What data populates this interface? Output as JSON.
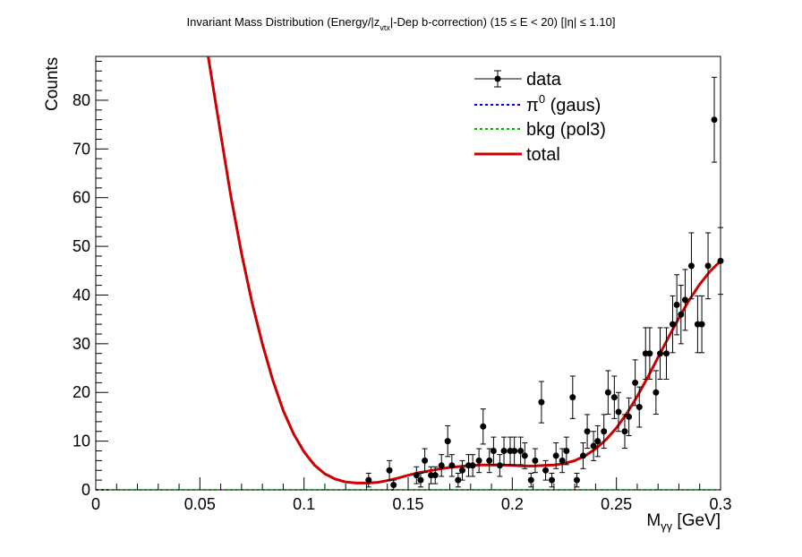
{
  "chart_data": {
    "type": "scatter",
    "title": {
      "part1": "Invariant Mass Distribution (Energy/|z",
      "sub": "vtx",
      "part2": "|-Dep b-correction)   (15 ≤ E < 20)   [|η| ≤ 1.10]"
    },
    "xlabel": {
      "main": "M",
      "sub": "γγ",
      "unit": " [GeV]"
    },
    "ylabel": "Counts",
    "xlim": [
      0,
      0.3
    ],
    "ylim": [
      0,
      89
    ],
    "x_ticks": [
      0,
      0.05,
      0.1,
      0.15,
      0.2,
      0.25,
      0.3
    ],
    "x_tick_labels": [
      "0",
      "0.05",
      "0.1",
      "0.15",
      "0.2",
      "0.25",
      "0.3"
    ],
    "y_ticks": [
      0,
      10,
      20,
      30,
      40,
      50,
      60,
      70,
      80
    ],
    "y_tick_labels": [
      "0",
      "10",
      "20",
      "30",
      "40",
      "50",
      "60",
      "70",
      "80"
    ],
    "legend": {
      "position": "top-right",
      "entries": [
        {
          "label": "data",
          "style": "marker-errorbar"
        },
        {
          "label_main": "π",
          "label_sup": "0",
          "label_rest": " (gaus)",
          "style": "dotted",
          "color": "#0000cc"
        },
        {
          "label": "bkg (pol3)",
          "style": "dotted",
          "color": "#00aa00"
        },
        {
          "label": "total",
          "style": "solid",
          "color": "#cc0000"
        }
      ]
    },
    "series": [
      {
        "name": "data",
        "color": "#000000",
        "points": [
          [
            0.131,
            2
          ],
          [
            0.141,
            4
          ],
          [
            0.143,
            1
          ],
          [
            0.154,
            3
          ],
          [
            0.156,
            2
          ],
          [
            0.158,
            6
          ],
          [
            0.161,
            3
          ],
          [
            0.163,
            3
          ],
          [
            0.166,
            5
          ],
          [
            0.169,
            10
          ],
          [
            0.171,
            5
          ],
          [
            0.174,
            2
          ],
          [
            0.176,
            4
          ],
          [
            0.179,
            5
          ],
          [
            0.181,
            5
          ],
          [
            0.184,
            6
          ],
          [
            0.186,
            13
          ],
          [
            0.189,
            6
          ],
          [
            0.191,
            8
          ],
          [
            0.194,
            5
          ],
          [
            0.196,
            8
          ],
          [
            0.199,
            8
          ],
          [
            0.201,
            8
          ],
          [
            0.204,
            8
          ],
          [
            0.206,
            7
          ],
          [
            0.209,
            2
          ],
          [
            0.211,
            6
          ],
          [
            0.214,
            18
          ],
          [
            0.216,
            4
          ],
          [
            0.219,
            2
          ],
          [
            0.221,
            7
          ],
          [
            0.224,
            6
          ],
          [
            0.226,
            8
          ],
          [
            0.229,
            19
          ],
          [
            0.231,
            2
          ],
          [
            0.234,
            7
          ],
          [
            0.236,
            12
          ],
          [
            0.239,
            9
          ],
          [
            0.241,
            10
          ],
          [
            0.244,
            12
          ],
          [
            0.246,
            20
          ],
          [
            0.249,
            19
          ],
          [
            0.251,
            16
          ],
          [
            0.254,
            12
          ],
          [
            0.256,
            15
          ],
          [
            0.259,
            22
          ],
          [
            0.261,
            17
          ],
          [
            0.264,
            28
          ],
          [
            0.266,
            28
          ],
          [
            0.269,
            20
          ],
          [
            0.271,
            28
          ],
          [
            0.274,
            28
          ],
          [
            0.277,
            34
          ],
          [
            0.279,
            38
          ],
          [
            0.281,
            36
          ],
          [
            0.283,
            39
          ],
          [
            0.286,
            46
          ],
          [
            0.289,
            34
          ],
          [
            0.291,
            34
          ],
          [
            0.294,
            46
          ],
          [
            0.297,
            76
          ],
          [
            0.3,
            47
          ]
        ]
      },
      {
        "name": "total",
        "color": "#cc0000",
        "curve": [
          [
            0.054,
            89
          ],
          [
            0.06,
            73
          ],
          [
            0.065,
            60
          ],
          [
            0.07,
            48.5
          ],
          [
            0.075,
            38.5
          ],
          [
            0.08,
            30
          ],
          [
            0.085,
            22.5
          ],
          [
            0.09,
            16.3
          ],
          [
            0.095,
            11.5
          ],
          [
            0.1,
            7.8
          ],
          [
            0.105,
            5.1
          ],
          [
            0.11,
            3.3
          ],
          [
            0.115,
            2.2
          ],
          [
            0.12,
            1.6
          ],
          [
            0.125,
            1.4
          ],
          [
            0.13,
            1.4
          ],
          [
            0.135,
            1.5
          ],
          [
            0.14,
            1.9
          ],
          [
            0.145,
            2.4
          ],
          [
            0.15,
            3
          ],
          [
            0.155,
            3.5
          ],
          [
            0.16,
            3.9
          ],
          [
            0.165,
            4.3
          ],
          [
            0.17,
            4.6
          ],
          [
            0.175,
            4.8
          ],
          [
            0.18,
            5
          ],
          [
            0.185,
            5.1
          ],
          [
            0.19,
            5.1
          ],
          [
            0.195,
            5.1
          ],
          [
            0.2,
            5
          ],
          [
            0.205,
            4.9
          ],
          [
            0.21,
            4.9
          ],
          [
            0.215,
            5
          ],
          [
            0.22,
            5.1
          ],
          [
            0.225,
            5.4
          ],
          [
            0.23,
            6
          ],
          [
            0.235,
            7
          ],
          [
            0.24,
            8.4
          ],
          [
            0.245,
            10.3
          ],
          [
            0.25,
            12.7
          ],
          [
            0.255,
            15.7
          ],
          [
            0.26,
            19.2
          ],
          [
            0.265,
            23.1
          ],
          [
            0.27,
            27.2
          ],
          [
            0.275,
            31.3
          ],
          [
            0.28,
            35.3
          ],
          [
            0.285,
            39
          ],
          [
            0.29,
            42.2
          ],
          [
            0.295,
            44.9
          ],
          [
            0.3,
            47
          ]
        ]
      },
      {
        "name": "bkg (pol3)",
        "color": "#00aa00",
        "curve": [
          [
            0,
            0
          ],
          [
            0.3,
            0
          ]
        ]
      }
    ]
  }
}
